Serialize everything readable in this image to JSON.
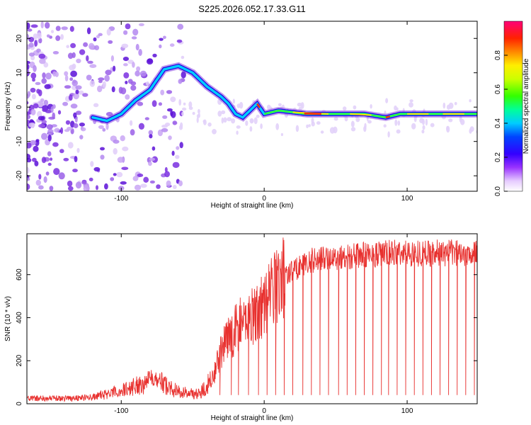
{
  "figure_title": "S225.2026.052.17.33.G11",
  "colors": {
    "snr_line": "#e8312f",
    "axis": "#000000"
  },
  "chart_data": [
    {
      "type": "heatmap",
      "title": "S225.2026.052.17.33.G11",
      "xlabel": "Height of straight line (km)",
      "ylabel": "Frequency (Hz)",
      "xlim": [
        -166,
        149
      ],
      "ylim": [
        -24.5,
        25
      ],
      "xticks": [
        -100,
        0,
        100
      ],
      "yticks": [
        -20,
        -10,
        0,
        10,
        20
      ],
      "colorbar": {
        "label": "Normalized spectral amplitude",
        "range": [
          0.0,
          1.0
        ],
        "ticks": [
          "0.0",
          "0.2",
          "0.4",
          "0.6",
          "0.8"
        ]
      },
      "ridge": {
        "description_points": [
          [
            -120,
            -3
          ],
          [
            -110,
            -4
          ],
          [
            -100,
            -2
          ],
          [
            -90,
            2
          ],
          [
            -80,
            5
          ],
          [
            -75,
            8
          ],
          [
            -70,
            11
          ],
          [
            -60,
            12
          ],
          [
            -50,
            10
          ],
          [
            -40,
            6
          ],
          [
            -30,
            3
          ],
          [
            -25,
            1
          ],
          [
            -20,
            -2
          ],
          [
            -15,
            -3
          ],
          [
            -10,
            -1
          ],
          [
            -5,
            1
          ],
          [
            0,
            -2
          ],
          [
            10,
            -1
          ],
          [
            30,
            -2
          ],
          [
            50,
            -2
          ],
          [
            70,
            -2
          ],
          [
            85,
            -3
          ],
          [
            95,
            -2
          ],
          [
            120,
            -2
          ],
          [
            149,
            -2
          ]
        ]
      }
    },
    {
      "type": "line",
      "xlabel": "Height of straight line (km)",
      "ylabel": "SNR (10 * v/v)",
      "xlim": [
        -166,
        149
      ],
      "ylim": [
        0,
        790
      ],
      "xticks": [
        -100,
        0,
        100
      ],
      "yticks": [
        0,
        200,
        400,
        600
      ],
      "series": [
        {
          "name": "SNR",
          "trend": [
            [
              -166,
              25
            ],
            [
              -140,
              25
            ],
            [
              -120,
              30
            ],
            [
              -100,
              60
            ],
            [
              -85,
              95
            ],
            [
              -78,
              130
            ],
            [
              -70,
              90
            ],
            [
              -60,
              55
            ],
            [
              -45,
              45
            ],
            [
              -35,
              140
            ],
            [
              -30,
              250
            ],
            [
              -22,
              330
            ],
            [
              -15,
              380
            ],
            [
              -8,
              420
            ],
            [
              0,
              460
            ],
            [
              5,
              520
            ],
            [
              10,
              570
            ],
            [
              15,
              600
            ],
            [
              25,
              640
            ],
            [
              35,
              670
            ],
            [
              50,
              680
            ],
            [
              70,
              690
            ],
            [
              90,
              700
            ],
            [
              110,
              700
            ],
            [
              130,
              700
            ],
            [
              149,
              705
            ]
          ],
          "dip_x": [
            -31,
            -23,
            -18,
            -11,
            -4,
            2,
            8,
            14,
            20,
            27,
            33,
            39,
            45,
            52,
            58,
            64,
            70,
            76,
            82,
            87,
            93,
            99,
            105,
            111,
            117,
            123,
            129,
            135,
            141,
            147
          ],
          "dip_value": 40
        }
      ]
    }
  ]
}
